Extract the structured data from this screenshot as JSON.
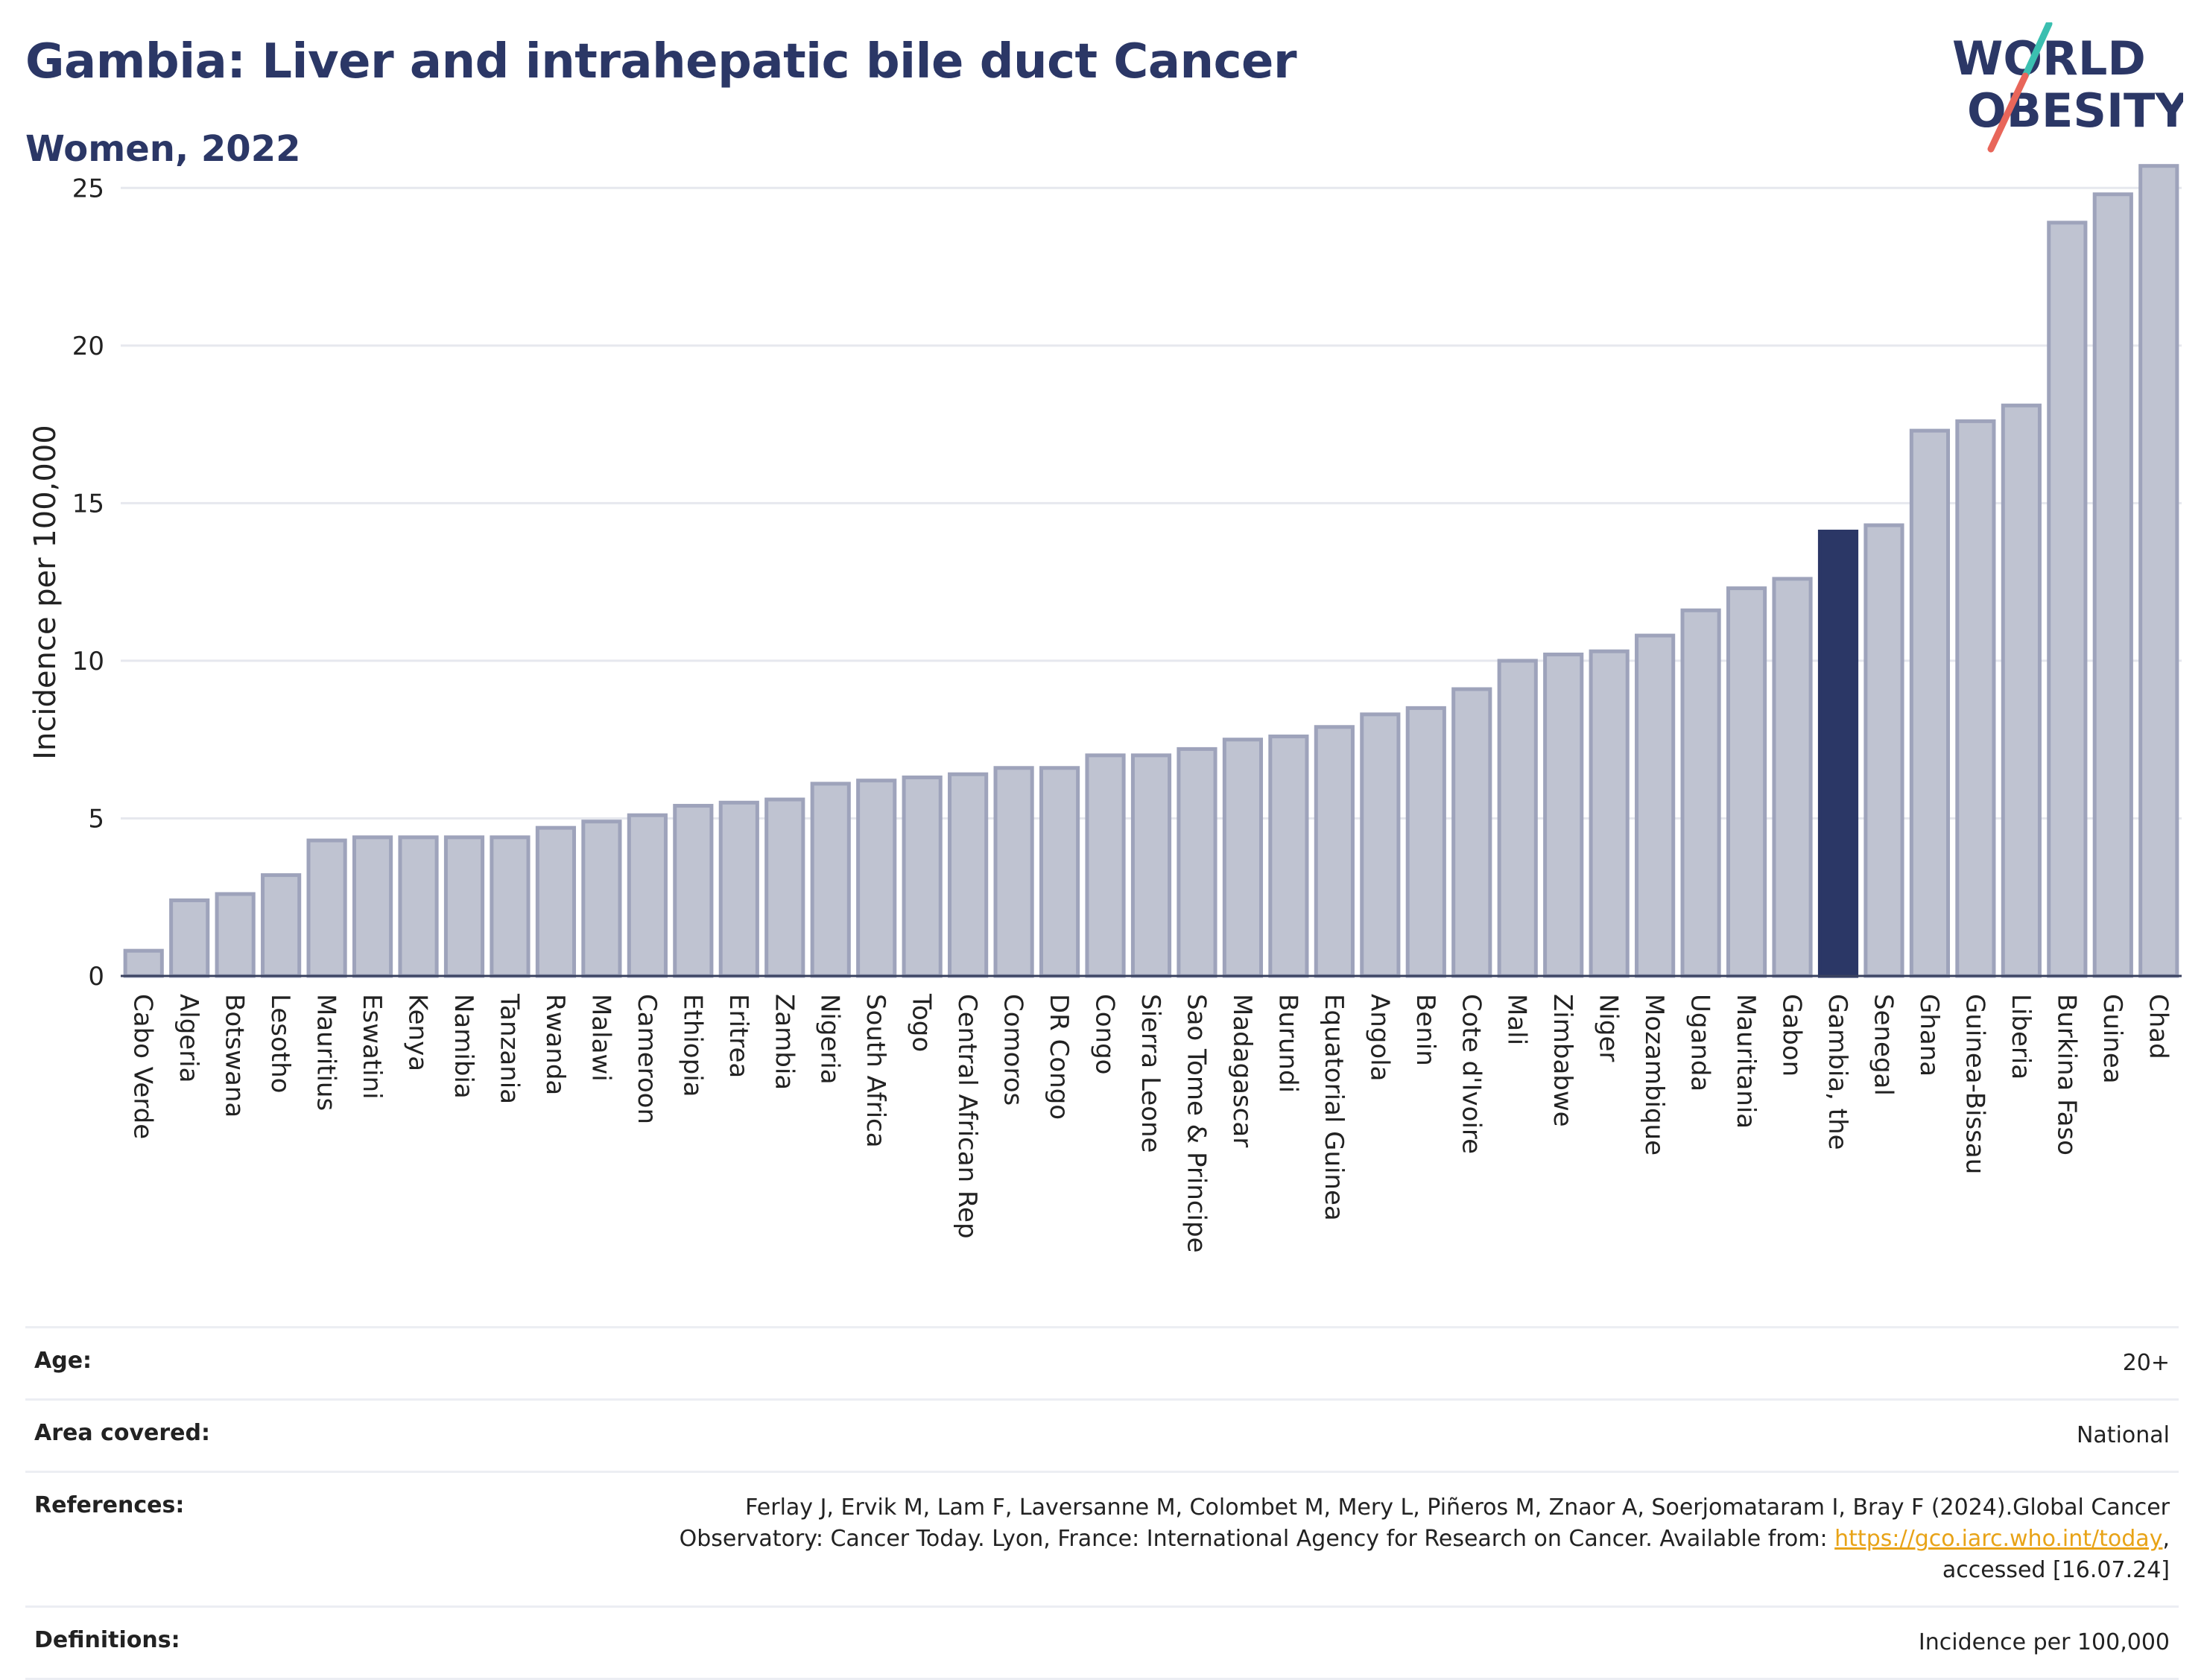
{
  "header": {
    "title": "Gambia: Liver and intrahepatic bile duct Cancer",
    "subtitle": "Women, 2022"
  },
  "logo": {
    "line1": "WORLD",
    "line2": "OBESITY",
    "colors": {
      "text": "#2b3766",
      "slash_top": "#3bbfb0",
      "slash_bottom": "#e8665a"
    }
  },
  "chart_data": {
    "type": "bar",
    "ylabel": "Incidence per 100,000",
    "ylim": [
      0,
      26
    ],
    "yticks": [
      0,
      5,
      10,
      15,
      20,
      25
    ],
    "grid": true,
    "highlight": "Gambia, the",
    "colors": {
      "bar": "#bfc3d1",
      "bar_border": "#9ea3bb",
      "highlight": "#2b3766",
      "grid": "#e6e8ee"
    },
    "categories": [
      "Cabo Verde",
      "Algeria",
      "Botswana",
      "Lesotho",
      "Mauritius",
      "Eswatini",
      "Kenya",
      "Namibia",
      "Tanzania",
      "Rwanda",
      "Malawi",
      "Cameroon",
      "Ethiopia",
      "Eritrea",
      "Zambia",
      "Nigeria",
      "South Africa",
      "Togo",
      "Central African Rep",
      "Comoros",
      "DR Congo",
      "Congo",
      "Sierra Leone",
      "Sao Tome & Principe",
      "Madagascar",
      "Burundi",
      "Equatorial Guinea",
      "Angola",
      "Benin",
      "Cote d'Ivoire",
      "Mali",
      "Zimbabwe",
      "Niger",
      "Mozambique",
      "Uganda",
      "Mauritania",
      "Gabon",
      "Gambia, the",
      "Senegal",
      "Ghana",
      "Guinea-Bissau",
      "Liberia",
      "Burkina Faso",
      "Guinea",
      "Chad"
    ],
    "values": [
      0.8,
      2.4,
      2.6,
      3.2,
      4.3,
      4.4,
      4.4,
      4.4,
      4.4,
      4.7,
      4.9,
      5.1,
      5.4,
      5.5,
      5.6,
      6.1,
      6.2,
      6.3,
      6.4,
      6.6,
      6.6,
      7.0,
      7.0,
      7.2,
      7.5,
      7.6,
      7.9,
      8.3,
      8.5,
      9.1,
      10.0,
      10.2,
      10.3,
      10.8,
      11.6,
      12.3,
      12.6,
      14.1,
      14.3,
      17.3,
      17.6,
      18.1,
      23.9,
      24.8,
      25.7
    ]
  },
  "meta": {
    "age_label": "Age:",
    "age_value": "20+",
    "area_label": "Area covered:",
    "area_value": "National",
    "ref_label": "References:",
    "ref_text1": "Ferlay J, Ervik M, Lam F, Laversanne M, Colombet M, Mery L, Piñeros M, Znaor A, Soerjomataram I, Bray F (2024).Global Cancer Observatory: Cancer Today. Lyon, France: International Agency for Research on Cancer. Available from: ",
    "ref_link": "https://gco.iarc.who.int/today",
    "ref_text2": ", accessed [16.07.24]",
    "def_label": "Definitions:",
    "def_value": "Incidence per 100,000"
  }
}
